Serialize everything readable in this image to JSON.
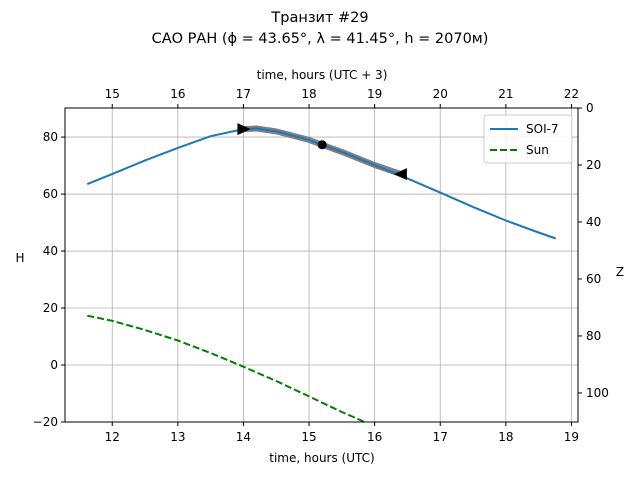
{
  "chart_data": {
    "type": "line",
    "title": "Транзит #29",
    "subtitle": "САО РАН (ϕ = 43.65°, λ = 41.45°, h = 2070м)",
    "xlabel": "time, hours (UTC)",
    "xlabel_top": "time, hours (UTC + 3)",
    "ylabel": "H",
    "ylabel_right": "Z",
    "xlim": [
      11.28,
      19.1
    ],
    "ylim": [
      -20,
      90.2
    ],
    "xticks": [
      12,
      13,
      14,
      15,
      16,
      17,
      18,
      19
    ],
    "xticks_top": [
      15,
      16,
      17,
      18,
      19,
      20,
      21,
      22
    ],
    "top_offset_hours": 3,
    "yticks": [
      -20,
      0,
      20,
      40,
      60,
      80
    ],
    "yticks_right": [
      0,
      20,
      40,
      60,
      80,
      100
    ],
    "grid": true,
    "legend_position": "top-right",
    "series": [
      {
        "name": "SOI-7",
        "color": "#1f77b4",
        "style": "solid",
        "x": [
          11.62,
          12.0,
          12.5,
          13.0,
          13.5,
          14.0,
          14.2,
          14.5,
          15.0,
          15.5,
          16.0,
          16.5,
          17.0,
          17.5,
          18.0,
          18.5,
          18.76
        ],
        "y": [
          63.5,
          67.0,
          71.8,
          76.2,
          80.3,
          82.8,
          83.0,
          82.0,
          79.0,
          74.8,
          70.2,
          65.5,
          60.5,
          55.5,
          50.7,
          46.5,
          44.4
        ]
      },
      {
        "name": "Sun",
        "color": "#008000",
        "style": "dashed",
        "x": [
          11.62,
          12.0,
          12.5,
          13.0,
          13.5,
          14.0,
          14.5,
          15.0,
          15.5,
          15.85
        ],
        "y": [
          17.3,
          15.5,
          12.3,
          8.6,
          4.2,
          -0.6,
          -5.6,
          -11.0,
          -16.5,
          -20.0
        ]
      }
    ],
    "transit": {
      "color": "#808080",
      "x": [
        14.0,
        14.2,
        14.5,
        15.0,
        15.2,
        15.5,
        16.0,
        16.4
      ],
      "y": [
        82.8,
        83.0,
        82.0,
        79.0,
        77.3,
        74.8,
        70.2,
        67.0
      ],
      "start": {
        "x": 14.0,
        "y": 82.8,
        "marker": "right-triangle"
      },
      "mid": {
        "x": 15.2,
        "y": 77.3,
        "marker": "dot"
      },
      "end": {
        "x": 16.4,
        "y": 67.0,
        "marker": "left-triangle"
      }
    }
  }
}
